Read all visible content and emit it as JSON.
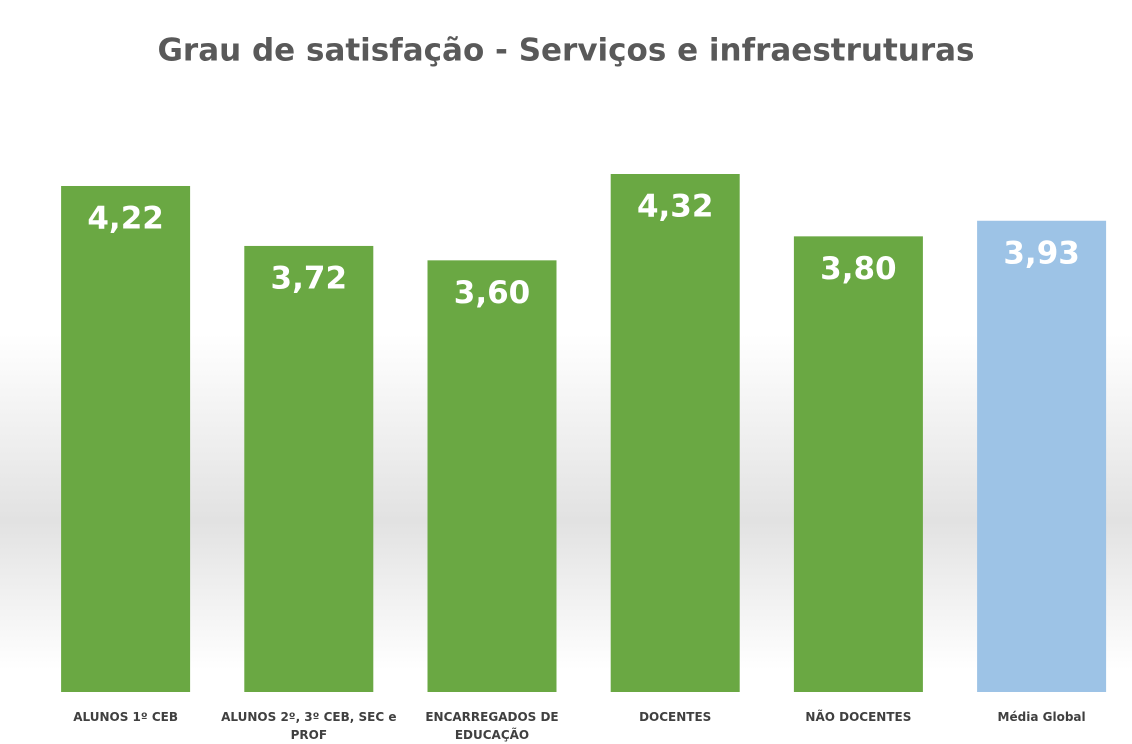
{
  "chart_data": {
    "type": "bar",
    "title": "Grau de satisfação - Serviços e infraestruturas",
    "categories": [
      "ALUNOS 1º CEB",
      "ALUNOS 2º, 3º CEB, SEC e PROF",
      "ENCARREGADOS DE EDUCAÇÃO",
      "DOCENTES",
      "NÃO DOCENTES",
      "Média Global"
    ],
    "values": [
      4.22,
      3.72,
      3.6,
      4.32,
      3.8,
      3.93
    ],
    "value_labels": [
      "4,22",
      "3,72",
      "3,60",
      "4,32",
      "3,80",
      "3,93"
    ],
    "colors": [
      "#6aa843",
      "#6aa843",
      "#6aa843",
      "#6aa843",
      "#6aa843",
      "#9dc3e6"
    ]
  }
}
